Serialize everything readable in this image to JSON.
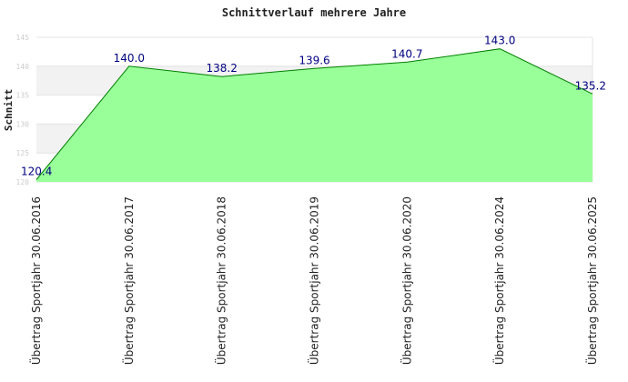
{
  "chart_data": {
    "type": "area",
    "title": "Schnittverlauf mehrere Jahre",
    "xlabel": "",
    "ylabel": "Schnitt",
    "categories": [
      "Übertrag Sportjahr 30.06.2016",
      "Übertrag Sportjahr 30.06.2017",
      "Übertrag Sportjahr 30.06.2018",
      "Übertrag Sportjahr 30.06.2019",
      "Übertrag Sportjahr 30.06.2020",
      "Übertrag Sportjahr 30.06.2024",
      "Übertrag Sportjahr 30.06.2025"
    ],
    "values": [
      120.4,
      140.0,
      138.2,
      139.6,
      140.7,
      143.0,
      135.2
    ],
    "data_labels": [
      "120.4",
      "140.0",
      "138.2",
      "139.6",
      "140.7",
      "143.0",
      "135.2"
    ],
    "ylim": [
      120,
      145
    ],
    "yticks": [
      120,
      125,
      130,
      135,
      140,
      145
    ],
    "grid": true,
    "legend": "none",
    "colors": {
      "fill": "#99ff99",
      "line": "#008000",
      "band": "#f2f2f2",
      "data_label": "#000080",
      "tick_label": "#cccccc"
    }
  }
}
